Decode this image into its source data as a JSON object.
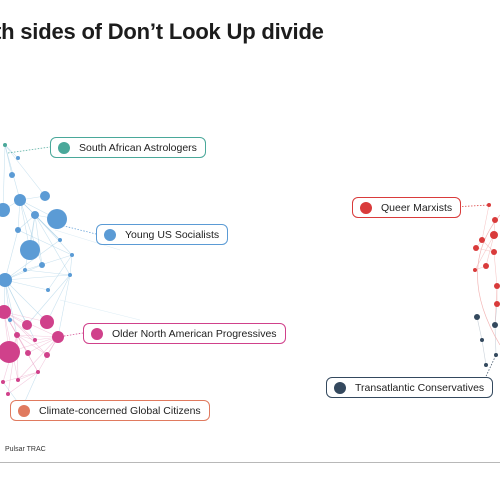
{
  "title": "th sides of Don’t Look Up divide",
  "source": "Pulsar TRAC",
  "colors": {
    "south_african_astrologers": "#4aa89a",
    "young_us_socialists": "#5b9bd5",
    "older_north_american_progressives": "#d0418b",
    "climate_concerned_global_citizens": "#e07a5f",
    "queer_marxists": "#d93b3b",
    "transatlantic_conservatives": "#34495e",
    "edges": "#9ecae1"
  },
  "chart_data": {
    "type": "network",
    "communities": [
      {
        "id": "south_african_astrologers",
        "label": "South African Astrologers",
        "color": "#4aa89a"
      },
      {
        "id": "young_us_socialists",
        "label": "Young US Socialists",
        "color": "#5b9bd5"
      },
      {
        "id": "older_north_american_progressives",
        "label": "Older North American Progressives",
        "color": "#d0418b"
      },
      {
        "id": "climate_concerned_global_citizens",
        "label": "Climate-concerned Global Citizens",
        "color": "#e07a5f"
      },
      {
        "id": "queer_marxists",
        "label": "Queer Marxists",
        "color": "#d93b3b"
      },
      {
        "id": "transatlantic_conservatives",
        "label": "Transatlantic Conservatives",
        "color": "#34495e"
      }
    ]
  }
}
